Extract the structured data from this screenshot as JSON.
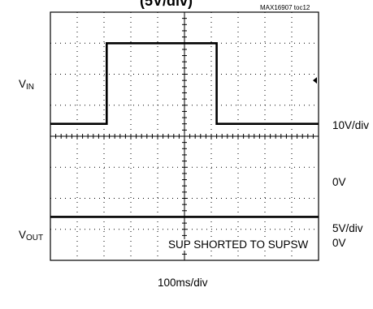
{
  "title_fragment": "(5V/div)",
  "figure_id": "MAX16907 toc12",
  "channels": [
    {
      "name_main": "V",
      "name_sub": "IN",
      "scale": "10V/div",
      "zero": "0V"
    },
    {
      "name_main": "V",
      "name_sub": "OUT",
      "scale": "5V/div",
      "zero": "0V"
    }
  ],
  "timebase": "100ms/div",
  "annotation": "SUP SHORTED TO SUPSW",
  "colors": {
    "trace": "#000000",
    "grid": "#000000",
    "background": "#ffffff"
  },
  "chart_data": {
    "type": "line",
    "grid": {
      "x_divisions": 10,
      "y_divisions": 8,
      "style": "dotted"
    },
    "x_unit": "div",
    "xlim": [
      0,
      10
    ],
    "series": [
      {
        "name": "VIN",
        "ylim_div": [
          -4,
          4
        ],
        "x": [
          0,
          2.1,
          2.1,
          6.2,
          6.2,
          10
        ],
        "y": [
          0.4,
          0.4,
          3.0,
          3.0,
          0.4,
          0.4
        ]
      },
      {
        "name": "VOUT",
        "ylim_div": [
          -4,
          4
        ],
        "x": [
          0,
          10
        ],
        "y": [
          -2.6,
          -2.6
        ]
      }
    ],
    "ground_markers": [
      {
        "channel": "VIN",
        "y_div": -0.7
      },
      {
        "channel": "VOUT",
        "y_div": -3.6
      }
    ]
  }
}
